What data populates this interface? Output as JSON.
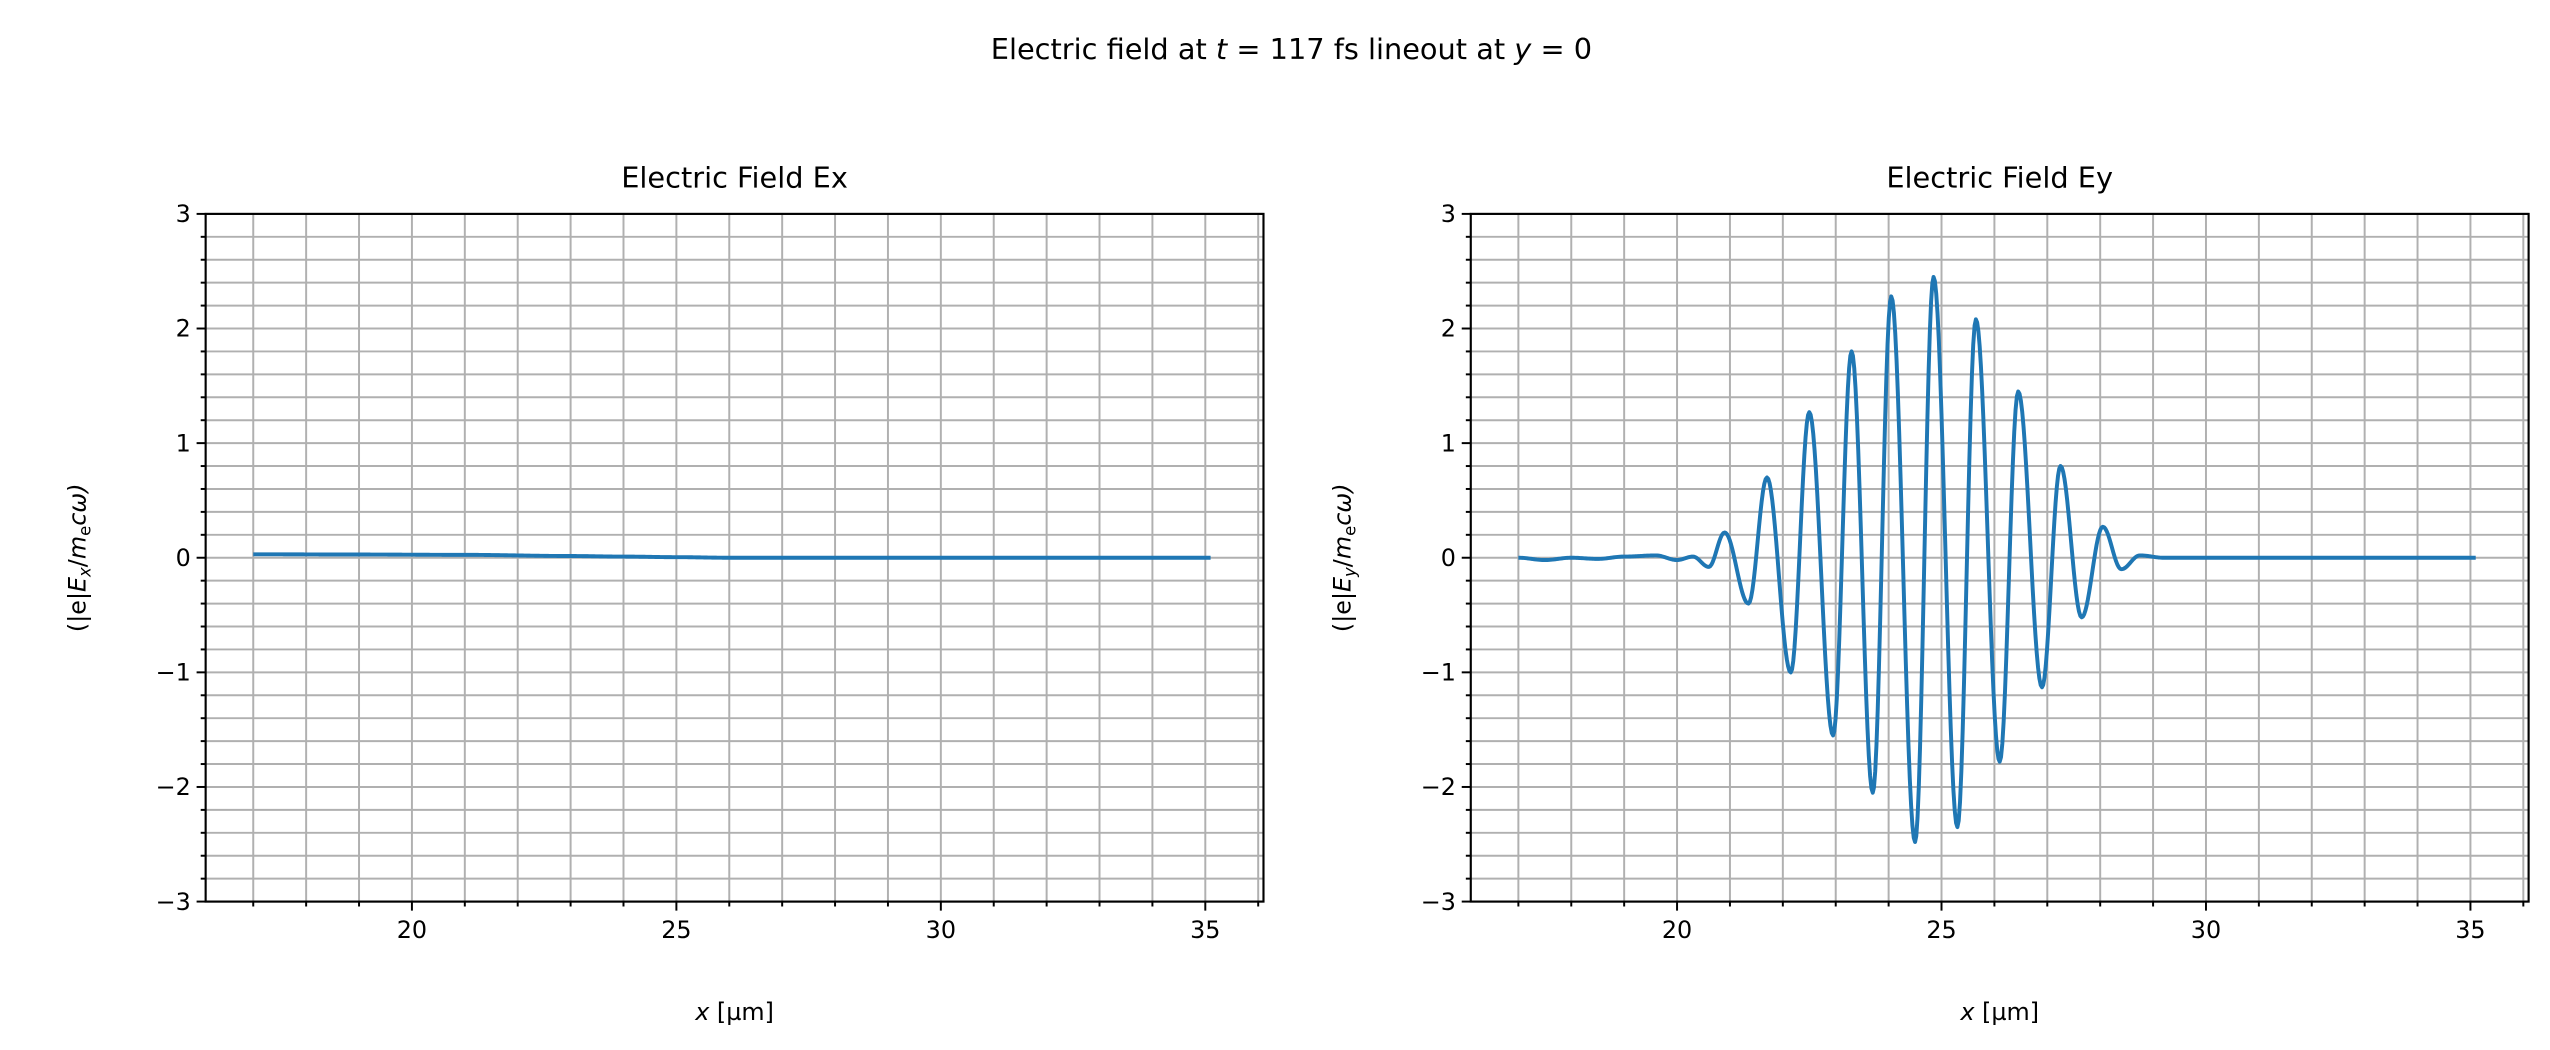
{
  "suptitle": {
    "pre": "Electric field at ",
    "t": "t",
    "mid": " = 117 fs lineout at ",
    "y": "y",
    "post": " = 0"
  },
  "colors": {
    "line": "#1f77b4",
    "grid": "#b0b0b0",
    "axes": "#000000"
  },
  "chart_data": [
    {
      "type": "line",
      "title": "Electric Field Ex",
      "xlabel": {
        "var": "x",
        "unit": " [µm]"
      },
      "ylabel": {
        "open": "(|e|",
        "E": "E",
        "sub": "x",
        "slash": "/",
        "m": "m",
        "msub": "e",
        "close": "cω)"
      },
      "xlim": [
        16.1,
        36.1
      ],
      "ylim": [
        -3,
        3
      ],
      "xticks": [
        20,
        25,
        30,
        35
      ],
      "yticks": [
        -3,
        -2,
        -1,
        0,
        1,
        2,
        3
      ],
      "ytick_labels": [
        "−3",
        "−2",
        "−1",
        "0",
        "1",
        "2",
        "3"
      ],
      "grid": "major and minor (x every 1, y every 0.2)",
      "points": [
        [
          17,
          0.03
        ],
        [
          19,
          0.028
        ],
        [
          21,
          0.025
        ],
        [
          23,
          0.015
        ],
        [
          24,
          0.01
        ],
        [
          25,
          0.005
        ],
        [
          26,
          0.0
        ],
        [
          27,
          0.0
        ],
        [
          35.1,
          0.0
        ]
      ]
    },
    {
      "type": "line",
      "title": "Electric Field Ey",
      "xlabel": {
        "var": "x",
        "unit": " [µm]"
      },
      "ylabel": {
        "open": "(|e|",
        "E": "E",
        "sub": "y",
        "slash": "/",
        "m": "m",
        "msub": "e",
        "close": "cω)"
      },
      "xlim": [
        16.1,
        36.1
      ],
      "ylim": [
        -3,
        3
      ],
      "xticks": [
        20,
        25,
        30,
        35
      ],
      "yticks": [
        -3,
        -2,
        -1,
        0,
        1,
        2,
        3
      ],
      "ytick_labels": [
        "−3",
        "−2",
        "−1",
        "0",
        "1",
        "2",
        "3"
      ],
      "grid": "major and minor (x every 1, y every 0.2)",
      "points": [
        [
          17,
          0
        ],
        [
          17.5,
          -0.02
        ],
        [
          18,
          0.0
        ],
        [
          18.5,
          -0.01
        ],
        [
          19,
          0.01
        ],
        [
          19.6,
          0.02
        ],
        [
          20.0,
          -0.02
        ],
        [
          20.3,
          0.01
        ],
        [
          20.6,
          -0.08
        ],
        [
          20.9,
          0.22
        ],
        [
          21.35,
          -0.4
        ],
        [
          21.7,
          0.7
        ],
        [
          22.15,
          -1.0
        ],
        [
          22.5,
          1.27
        ],
        [
          22.95,
          -1.55
        ],
        [
          23.3,
          1.8
        ],
        [
          23.7,
          -2.05
        ],
        [
          24.05,
          2.28
        ],
        [
          24.5,
          -2.48
        ],
        [
          24.85,
          2.45
        ],
        [
          25.3,
          -2.35
        ],
        [
          25.65,
          2.08
        ],
        [
          26.1,
          -1.78
        ],
        [
          26.45,
          1.45
        ],
        [
          26.9,
          -1.13
        ],
        [
          27.25,
          0.8
        ],
        [
          27.65,
          -0.52
        ],
        [
          28.05,
          0.27
        ],
        [
          28.4,
          -0.1
        ],
        [
          28.75,
          0.02
        ],
        [
          29.2,
          0.0
        ],
        [
          35.1,
          0.0
        ]
      ]
    }
  ]
}
